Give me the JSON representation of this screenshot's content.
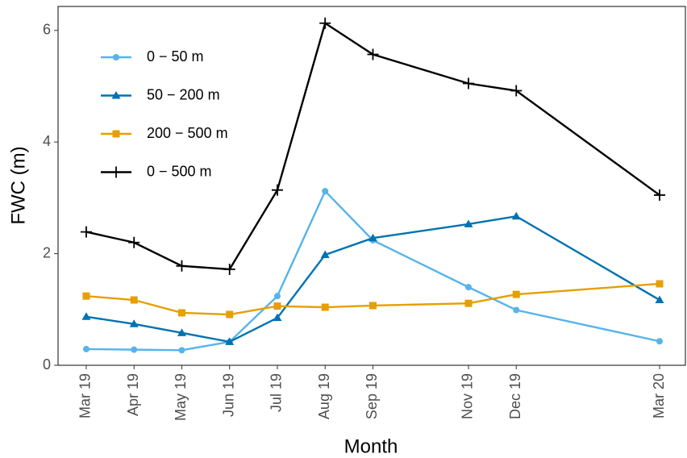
{
  "chart_data": {
    "type": "line",
    "x_label": "Month",
    "y_label": "FWC (m)",
    "x": [
      "Mar 19",
      "Apr 19",
      "May 19",
      "Jun 19",
      "Jul 19",
      "Aug 19",
      "Sep 19",
      "Nov 19",
      "Dec 19",
      "Mar 20"
    ],
    "series": [
      {
        "name": "0 − 50 m",
        "color": "#56B4E9",
        "marker": "circle",
        "values": [
          0.29,
          0.28,
          0.27,
          0.42,
          1.24,
          3.12,
          2.24,
          1.4,
          0.99,
          0.43
        ]
      },
      {
        "name": "50 − 200 m",
        "color": "#0072B2",
        "marker": "triangle",
        "values": [
          0.87,
          0.74,
          0.58,
          0.42,
          0.85,
          1.98,
          2.28,
          2.53,
          2.67,
          1.17
        ]
      },
      {
        "name": "200 − 500 m",
        "color": "#E69F00",
        "marker": "square",
        "values": [
          1.24,
          1.17,
          0.94,
          0.91,
          1.06,
          1.04,
          1.07,
          1.11,
          1.27,
          1.46
        ]
      },
      {
        "name": "0 − 500 m",
        "color": "#000000",
        "marker": "plus",
        "values": [
          2.39,
          2.2,
          1.78,
          1.72,
          3.14,
          6.13,
          5.57,
          5.05,
          4.92,
          3.05
        ]
      }
    ],
    "ylim": [
      0,
      6.43
    ],
    "yticks": [
      0,
      2,
      4,
      6
    ],
    "grid": false,
    "legend": "top-left"
  }
}
